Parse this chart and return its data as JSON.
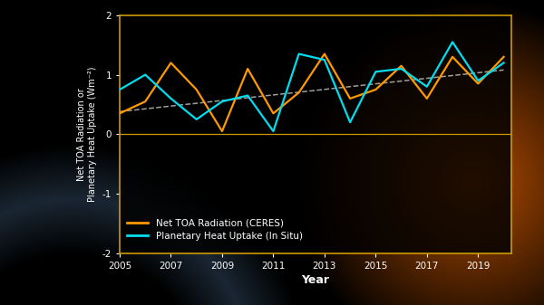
{
  "years_orange": [
    2005,
    2006,
    2007,
    2008,
    2009,
    2010,
    2011,
    2012,
    2013,
    2014,
    2015,
    2016,
    2017,
    2018,
    2019,
    2020
  ],
  "ceres": [
    0.35,
    0.55,
    1.2,
    0.75,
    0.05,
    1.1,
    0.35,
    0.7,
    1.35,
    0.6,
    0.75,
    1.15,
    0.6,
    1.3,
    0.85,
    1.3
  ],
  "years_cyan": [
    2005,
    2006,
    2007,
    2008,
    2009,
    2010,
    2011,
    2012,
    2013,
    2014,
    2015,
    2016,
    2017,
    2018,
    2019,
    2020
  ],
  "insitu": [
    0.75,
    1.0,
    0.6,
    0.25,
    0.55,
    0.65,
    0.05,
    1.35,
    1.25,
    0.2,
    1.05,
    1.1,
    0.8,
    1.55,
    0.9,
    1.2
  ],
  "trend_x": [
    2005,
    2020
  ],
  "trend_y": [
    0.38,
    1.08
  ],
  "color_orange": "#FF9900",
  "color_cyan": "#00DDEE",
  "color_trend": "#BBBBBB",
  "color_zero": "#CC9900",
  "color_text": "white",
  "color_bg_fig": "#000000",
  "color_bg_ax": "#000000",
  "ylabel": "Net TOA Radiation or\nPlanetary Heat Uptake (Wm⁻²)",
  "xlabel": "Year",
  "legend1": "Net TOA Radiation (CERES)",
  "legend2": "Planetary Heat Uptake (In Situ)",
  "ylim": [
    -2,
    2
  ],
  "xlim": [
    2005,
    2020.3
  ],
  "xticks": [
    2005,
    2007,
    2009,
    2011,
    2013,
    2015,
    2017,
    2019
  ],
  "yticks": [
    -2,
    -1,
    0,
    1,
    2
  ],
  "figsize": [
    6.0,
    3.37
  ],
  "dpi": 100,
  "linewidth": 1.6,
  "spine_color": "#CC9900"
}
